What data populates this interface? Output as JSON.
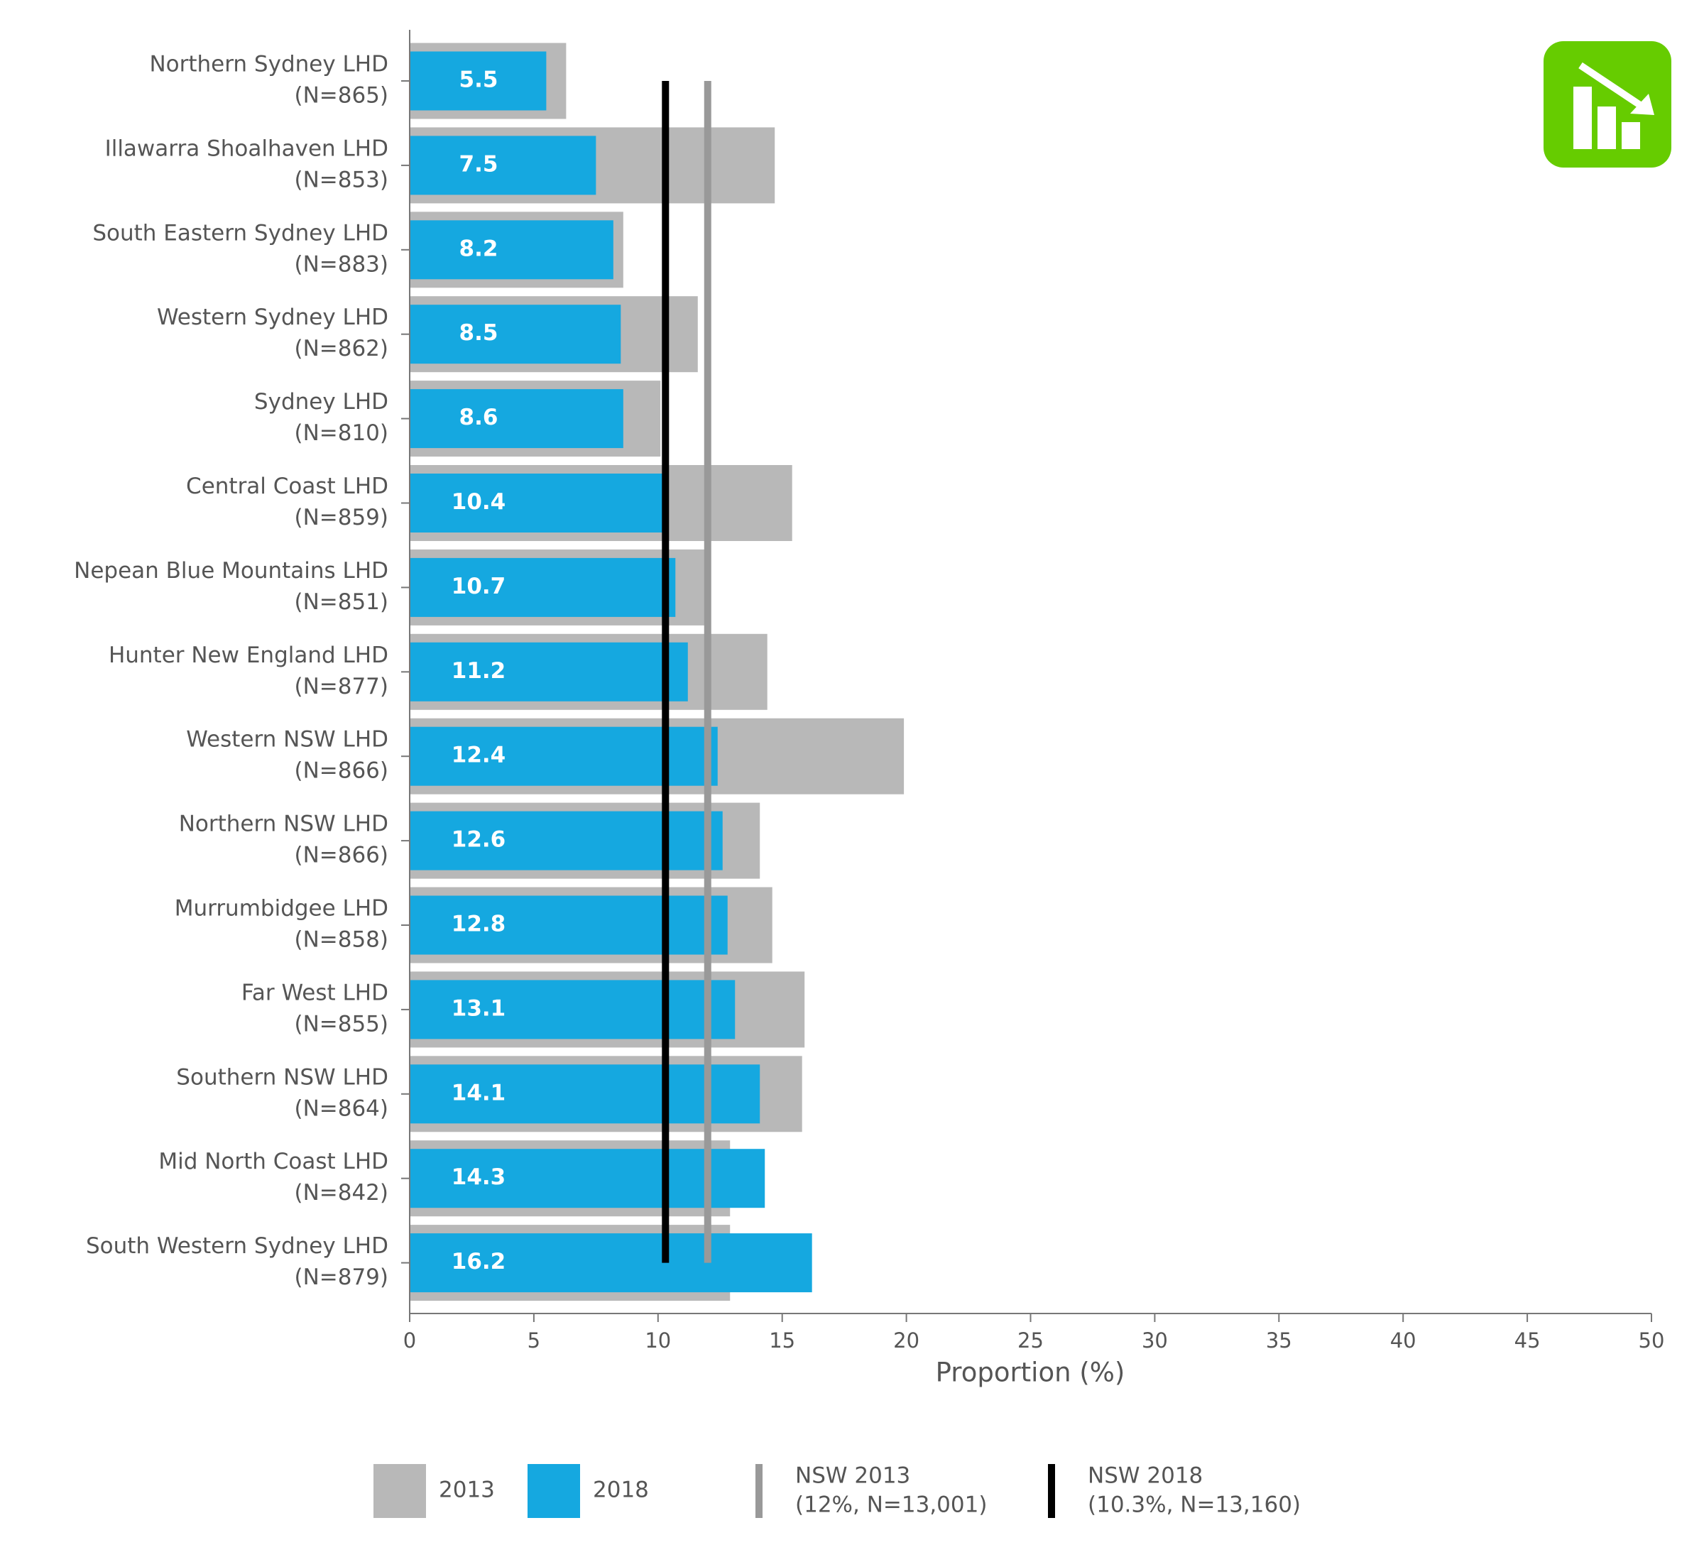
{
  "chart_data": {
    "type": "bar",
    "orientation": "horizontal",
    "x_label": "Proportion (%)",
    "categories": [
      [
        "Northern Sydney LHD",
        "(N=865)"
      ],
      [
        "Illawarra Shoalhaven LHD",
        "(N=853)"
      ],
      [
        "South Eastern Sydney LHD",
        "(N=883)"
      ],
      [
        "Western Sydney LHD",
        "(N=862)"
      ],
      [
        "Sydney LHD",
        "(N=810)"
      ],
      [
        "Central Coast LHD",
        "(N=859)"
      ],
      [
        "Nepean Blue Mountains LHD",
        "(N=851)"
      ],
      [
        "Hunter New England LHD",
        "(N=877)"
      ],
      [
        "Western NSW LHD",
        "(N=866)"
      ],
      [
        "Northern NSW LHD",
        "(N=866)"
      ],
      [
        "Murrumbidgee LHD",
        "(N=858)"
      ],
      [
        "Far West LHD",
        "(N=855)"
      ],
      [
        "Southern NSW LHD",
        "(N=864)"
      ],
      [
        "Mid North Coast LHD",
        "(N=842)"
      ],
      [
        "South Western Sydney LHD",
        "(N=879)"
      ]
    ],
    "series": [
      {
        "name": "2013",
        "color": "#b8b8b8",
        "values": [
          6.3,
          14.7,
          8.6,
          11.6,
          10.1,
          15.4,
          12.1,
          14.4,
          19.9,
          14.1,
          14.6,
          15.9,
          15.8,
          12.9,
          12.9
        ]
      },
      {
        "name": "2018",
        "color": "#15a8e0",
        "values": [
          5.5,
          7.5,
          8.2,
          8.5,
          8.6,
          10.4,
          10.7,
          11.2,
          12.4,
          12.6,
          12.8,
          13.1,
          14.1,
          14.3,
          16.2
        ]
      }
    ],
    "reference_lines": [
      {
        "name": "NSW 2013",
        "label": "(12%, N=13,001)",
        "value": 12,
        "color": "#999999"
      },
      {
        "name": "NSW 2018",
        "label": "(10.3%, N=13,160)",
        "value": 10.3,
        "color": "#000000"
      }
    ],
    "xlim": [
      0,
      50
    ],
    "xticks": [
      0,
      5,
      10,
      15,
      20,
      25,
      30,
      35,
      40,
      45,
      50
    ],
    "grid": false
  }
}
